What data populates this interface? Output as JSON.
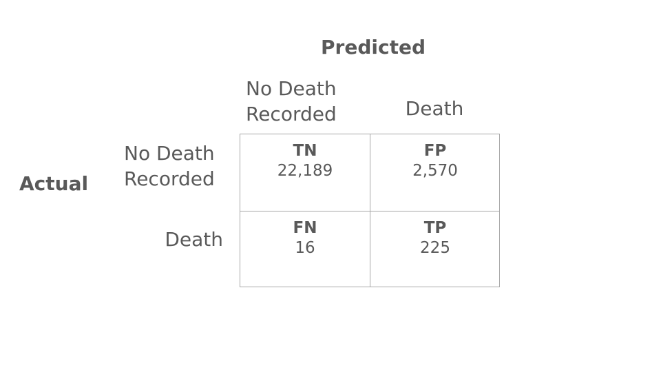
{
  "predicted_title": "Predicted",
  "actual_title": "Actual",
  "columns": [
    {
      "line1": "No Death",
      "line2": "Recorded"
    },
    {
      "label": "Death"
    }
  ],
  "rows": [
    {
      "line1": "No Death",
      "line2": "Recorded"
    },
    {
      "label": "Death"
    }
  ],
  "cells": {
    "tn": {
      "code": "TN",
      "count": "22,189"
    },
    "fp": {
      "code": "FP",
      "count": "2,570"
    },
    "fn": {
      "code": "FN",
      "count": "16"
    },
    "tp": {
      "code": "TP",
      "count": "225"
    }
  },
  "colors": {
    "text": "#595959",
    "grid": "#a6a6a6",
    "background": "#ffffff"
  }
}
